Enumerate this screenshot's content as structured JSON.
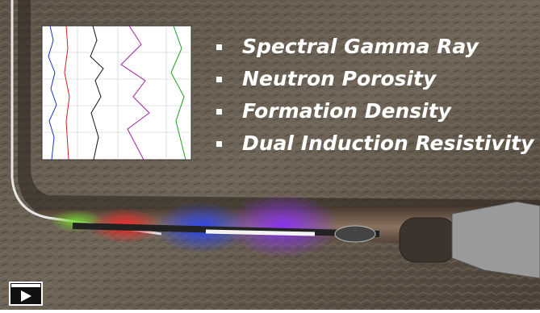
{
  "bullets": [
    "Spectral Gamma Ray",
    "Neutron Porosity",
    "Formation Density",
    "Dual Induction Resistivity"
  ]
}
